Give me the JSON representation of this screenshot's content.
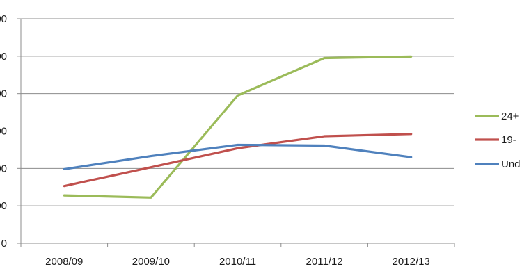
{
  "chart_data": {
    "type": "line",
    "categories": [
      "2008/09",
      "2009/10",
      "2010/11",
      "2011/12",
      "2012/13"
    ],
    "y_tick_labels": [
      "0",
      "00",
      "00",
      "00",
      "00",
      "00",
      "00"
    ],
    "ylim": [
      0,
      6
    ],
    "y_step": 1,
    "grid": true,
    "legend_position": "right",
    "series": [
      {
        "name": "24+",
        "legend_label": "24+",
        "color": "#9bbb59",
        "values": [
          1.28,
          1.22,
          3.95,
          4.95,
          4.99
        ]
      },
      {
        "name": "19-",
        "legend_label": "19-",
        "color": "#c0504d",
        "values": [
          1.53,
          2.03,
          2.54,
          2.86,
          2.92
        ]
      },
      {
        "name": "Und",
        "legend_label": "Und",
        "color": "#4f81bd",
        "values": [
          1.98,
          2.33,
          2.63,
          2.61,
          2.3
        ]
      }
    ]
  }
}
